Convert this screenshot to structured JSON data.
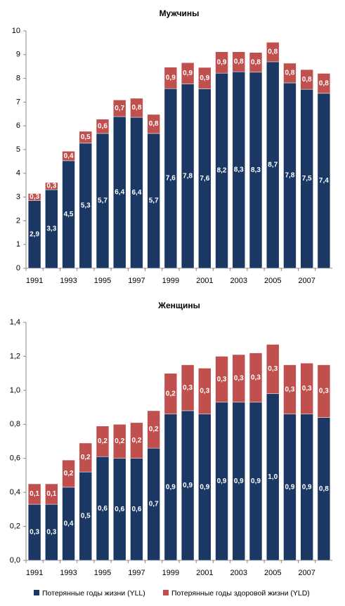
{
  "chart_data": [
    {
      "type": "bar",
      "stacked": true,
      "title": "Мужчины",
      "categories": [
        "1991",
        null,
        "1993",
        null,
        "1995",
        null,
        "1997",
        null,
        "1999",
        null,
        "2001",
        null,
        "2003",
        null,
        "2005",
        null,
        "2007",
        null
      ],
      "ylim": [
        0,
        10
      ],
      "yticks": [
        0,
        1,
        2,
        3,
        4,
        5,
        6,
        7,
        8,
        9,
        10
      ],
      "series": [
        {
          "name": "Потерянные годы жизни (YLL)",
          "color": "#1b3764",
          "values": [
            2.85,
            3.31,
            4.53,
            5.27,
            5.68,
            6.39,
            6.36,
            5.68,
            7.57,
            7.76,
            7.56,
            8.22,
            8.28,
            8.26,
            8.7,
            7.81,
            7.54,
            7.37
          ],
          "value_labels": [
            "2,9",
            "3,3",
            "4,5",
            "5,3",
            "5,7",
            "6,4",
            "6,4",
            "5,7",
            "7,6",
            "7,8",
            "7,6",
            "8,2",
            "8,3",
            "8,3",
            "8,7",
            "7,8",
            "7,5",
            "7,4"
          ]
        },
        {
          "name": "Потерянные годы здоровой жизни (YLD)",
          "color": "#c0504d",
          "values": [
            0.3,
            0.3,
            0.4,
            0.5,
            0.6,
            0.7,
            0.8,
            0.8,
            0.9,
            0.9,
            0.9,
            0.9,
            0.84,
            0.83,
            0.82,
            0.83,
            0.83,
            0.84
          ],
          "value_labels": [
            "0,3",
            "0,3",
            "0,4",
            "0,5",
            "0,6",
            "0,7",
            "0,8",
            "0,8",
            "0,9",
            "0,9",
            "0,9",
            "0,9",
            "0,8",
            "0,8",
            "0,8",
            "0,8",
            "0,8",
            "0,8"
          ]
        }
      ]
    },
    {
      "type": "bar",
      "stacked": true,
      "title": "Женщины",
      "categories": [
        "1991",
        null,
        "1993",
        null,
        "1995",
        null,
        "1997",
        null,
        "1999",
        null,
        "2001",
        null,
        "2003",
        null,
        "2005",
        null,
        "2007",
        null
      ],
      "ylim": [
        0,
        1.4
      ],
      "yticks": [
        {
          "value": 0,
          "label": "0,0"
        },
        {
          "value": 0.2,
          "label": "0,2"
        },
        {
          "value": 0.4,
          "label": "0,4"
        },
        {
          "value": 0.6,
          "label": "0,6"
        },
        {
          "value": 0.8,
          "label": "0,8"
        },
        {
          "value": 1.0,
          "label": "1,0"
        },
        {
          "value": 1.2,
          "label": "1,2"
        },
        {
          "value": 1.4,
          "label": "1,4"
        }
      ],
      "series": [
        {
          "name": "Потерянные годы жизни (YLL)",
          "color": "#1b3764",
          "values": [
            0.33,
            0.33,
            0.43,
            0.52,
            0.61,
            0.6,
            0.6,
            0.66,
            0.86,
            0.88,
            0.86,
            0.93,
            0.93,
            0.93,
            0.98,
            0.86,
            0.86,
            0.84
          ],
          "value_labels": [
            "0,3",
            "0,3",
            "0,4",
            "0,5",
            "0,6",
            "0,6",
            "0,6",
            "0,7",
            "0,9",
            "0,9",
            "0,9",
            "0,9",
            "0,9",
            "0,9",
            "1,0",
            "0,9",
            "0,9",
            "0,8"
          ]
        },
        {
          "name": "Потерянные годы здоровой жизни (YLD)",
          "color": "#c0504d",
          "values": [
            0.12,
            0.12,
            0.16,
            0.17,
            0.18,
            0.2,
            0.21,
            0.22,
            0.24,
            0.27,
            0.27,
            0.27,
            0.28,
            0.29,
            0.29,
            0.29,
            0.3,
            0.31
          ],
          "value_labels": [
            "0,1",
            "0,1",
            "0,2",
            "0,2",
            "0,2",
            "0,2",
            "0,2",
            "0,2",
            "0,2",
            "0,3",
            "0,3",
            "0,3",
            "0,3",
            "0,3",
            "0,3",
            "0,3",
            "0,3",
            "0,3"
          ]
        }
      ]
    }
  ]
}
